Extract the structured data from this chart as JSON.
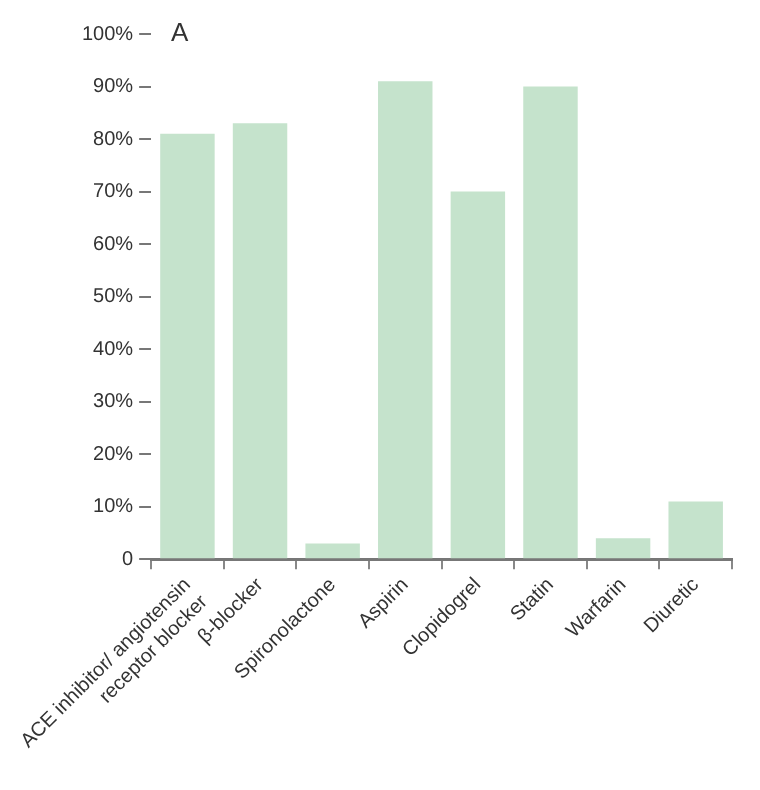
{
  "chart_data": {
    "type": "bar",
    "categories": [
      "ACE inhibitor/ angiotensin receptor blocker",
      "β-blocker",
      "Spironolactone",
      "Aspirin",
      "Clopidogrel",
      "Statin",
      "Warfarin",
      "Diuretic"
    ],
    "values": [
      81,
      83,
      3,
      91,
      70,
      90,
      4,
      11
    ],
    "color": "#c5e3cc",
    "ylim": [
      0,
      100
    ],
    "yticks": [
      {
        "value": 0,
        "label": "0"
      },
      {
        "value": 10,
        "label": "10%"
      },
      {
        "value": 20,
        "label": "20%"
      },
      {
        "value": 30,
        "label": "30%"
      },
      {
        "value": 40,
        "label": "40%"
      },
      {
        "value": 50,
        "label": "50%"
      },
      {
        "value": 60,
        "label": "60%"
      },
      {
        "value": 70,
        "label": "70%"
      },
      {
        "value": 80,
        "label": "80%"
      },
      {
        "value": 90,
        "label": "90%"
      },
      {
        "value": 100,
        "label": "100%"
      }
    ],
    "annotations": [
      "A"
    ]
  }
}
